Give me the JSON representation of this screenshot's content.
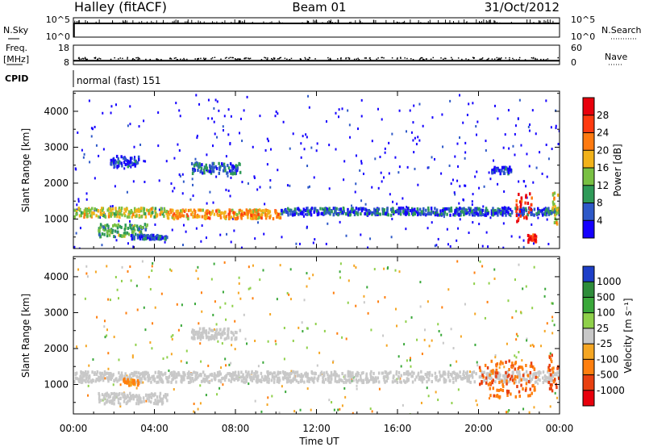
{
  "header": {
    "station": "Halley (fitACF)",
    "beam": "Beam 01",
    "date": "31/Oct/2012"
  },
  "chart_data": {
    "type": "heatmap",
    "x_axis": {
      "label": "Time UT",
      "ticks": [
        "00:00",
        "04:00",
        "08:00",
        "12:00",
        "16:00",
        "20:00",
        "00:00"
      ],
      "range_hours": [
        0,
        24
      ]
    },
    "noise_panel": {
      "left_label": "N.Sky",
      "left_ticks": [
        "10^5",
        "10^0"
      ],
      "right_label": "N.Search",
      "right_ticks": [
        "10^5",
        "10^0"
      ]
    },
    "freq_panel": {
      "left_label_top": "Freq.",
      "left_label_bottom": "[MHz]",
      "left_ticks": [
        "18",
        "8"
      ],
      "right_label": "Nave",
      "right_ticks": [
        "60",
        "0"
      ],
      "freq_mhz": 10,
      "nave": 20
    },
    "cpid": {
      "label": "CPID",
      "text": "normal (fast) 151"
    },
    "power_panel": {
      "ylabel": "Slant Range [km]",
      "yticks": [
        1000,
        2000,
        3000,
        4000
      ],
      "ylim": [
        180,
        4560
      ],
      "colorbar_label": "Power [dB]",
      "colorbar_ticks": [
        4,
        8,
        12,
        16,
        20,
        24,
        28
      ],
      "colorbar_colors": [
        "#1500ff",
        "#2e59c8",
        "#2f9a58",
        "#79c043",
        "#f2b21a",
        "#ff7a10",
        "#ff3a10",
        "#e8000c"
      ],
      "echo_regions": [
        {
          "t0": 0.0,
          "t1": 4.6,
          "r0": 1100,
          "r1": 1350,
          "level": 16
        },
        {
          "t0": 4.6,
          "t1": 10.2,
          "r0": 1050,
          "r1": 1300,
          "level": 20
        },
        {
          "t0": 10.2,
          "t1": 24.0,
          "r0": 1150,
          "r1": 1350,
          "level": 6
        },
        {
          "t0": 1.2,
          "t1": 3.6,
          "r0": 550,
          "r1": 900,
          "level": 12
        },
        {
          "t0": 2.8,
          "t1": 4.6,
          "r0": 480,
          "r1": 600,
          "level": 6
        },
        {
          "t0": 5.8,
          "t1": 8.2,
          "r0": 2300,
          "r1": 2600,
          "level": 6
        },
        {
          "t0": 1.8,
          "t1": 3.2,
          "r0": 2500,
          "r1": 2800,
          "level": 4
        },
        {
          "t0": 20.6,
          "t1": 21.6,
          "r0": 2300,
          "r1": 2500,
          "level": 4
        },
        {
          "t0": 21.8,
          "t1": 22.6,
          "r0": 900,
          "r1": 1800,
          "level": 28
        },
        {
          "t0": 22.4,
          "t1": 22.8,
          "r0": 400,
          "r1": 600,
          "level": 28
        },
        {
          "t0": 23.6,
          "t1": 24.0,
          "r0": 900,
          "r1": 1800,
          "level": 16
        }
      ]
    },
    "velocity_panel": {
      "ylabel": "Slant Range [km]",
      "yticks": [
        1000,
        2000,
        3000,
        4000
      ],
      "ylim": [
        180,
        4560
      ],
      "colorbar_label": "Velocity [m s⁻¹]",
      "colorbar_ticks": [
        "1000",
        "500",
        "100",
        "25",
        "-25",
        "-100",
        "-500",
        "-1000"
      ],
      "colorbar_colors": [
        "#1e3fc8",
        "#2e8c3a",
        "#3aa83a",
        "#8fd04a",
        "#c8c8c8",
        "#f5a623",
        "#ff7f0e",
        "#e84010",
        "#e8000c"
      ],
      "echo_regions": [
        {
          "t0": 0.0,
          "t1": 24.0,
          "r0": 1100,
          "r1": 1400,
          "velocity": 0
        },
        {
          "t0": 1.2,
          "t1": 4.6,
          "r0": 500,
          "r1": 800,
          "velocity": 0
        },
        {
          "t0": 2.4,
          "t1": 3.2,
          "r0": 1000,
          "r1": 1200,
          "velocity": -100
        },
        {
          "t0": 5.8,
          "t1": 8.2,
          "r0": 2300,
          "r1": 2600,
          "velocity": 0
        },
        {
          "t0": 20.0,
          "t1": 22.8,
          "r0": 700,
          "r1": 1700,
          "velocity": -500
        },
        {
          "t0": 23.4,
          "t1": 24.0,
          "r0": 700,
          "r1": 1900,
          "velocity": -500
        }
      ]
    }
  }
}
